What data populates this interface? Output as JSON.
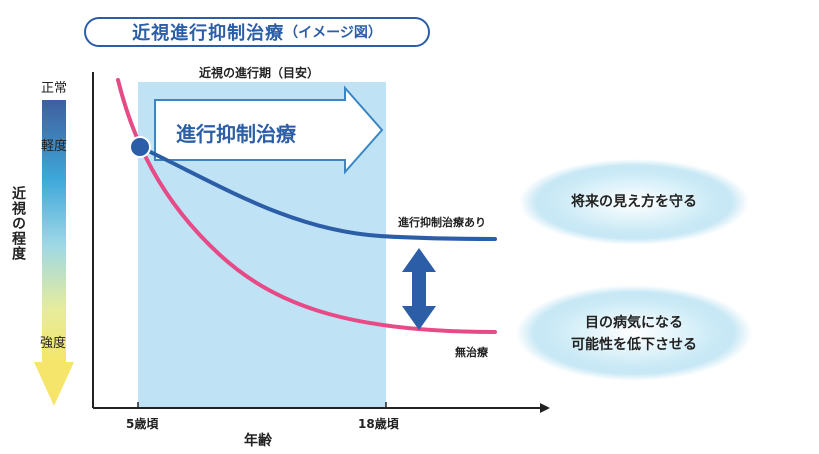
{
  "title": {
    "main": "近視進行抑制治療",
    "sub": "（イメージ図）"
  },
  "legend_bar": {
    "top_label": "正常",
    "mild_label": "軽度",
    "severe_label": "強度"
  },
  "y_axis_label": "近視の程度",
  "x_axis_label": "年齢",
  "period_label": "近視の進行期（目安）",
  "arrow_label": "進行抑制治療",
  "curves": {
    "treated_label": "進行抑制治療あり",
    "untreated_label": "無治療",
    "treated_color": "#2c5ea8",
    "untreated_color": "#e64b87"
  },
  "x_ticks": {
    "start": "5歳頃",
    "end": "18歳頃"
  },
  "outcomes": {
    "good": "将来の見え方を守る",
    "bad_line1": "目の病気になる",
    "bad_line2": "可能性を低下させる"
  },
  "colors": {
    "accent": "#2c5ea8",
    "period_band": "#bfe3f4",
    "band_arrow": "#3a86c4"
  }
}
